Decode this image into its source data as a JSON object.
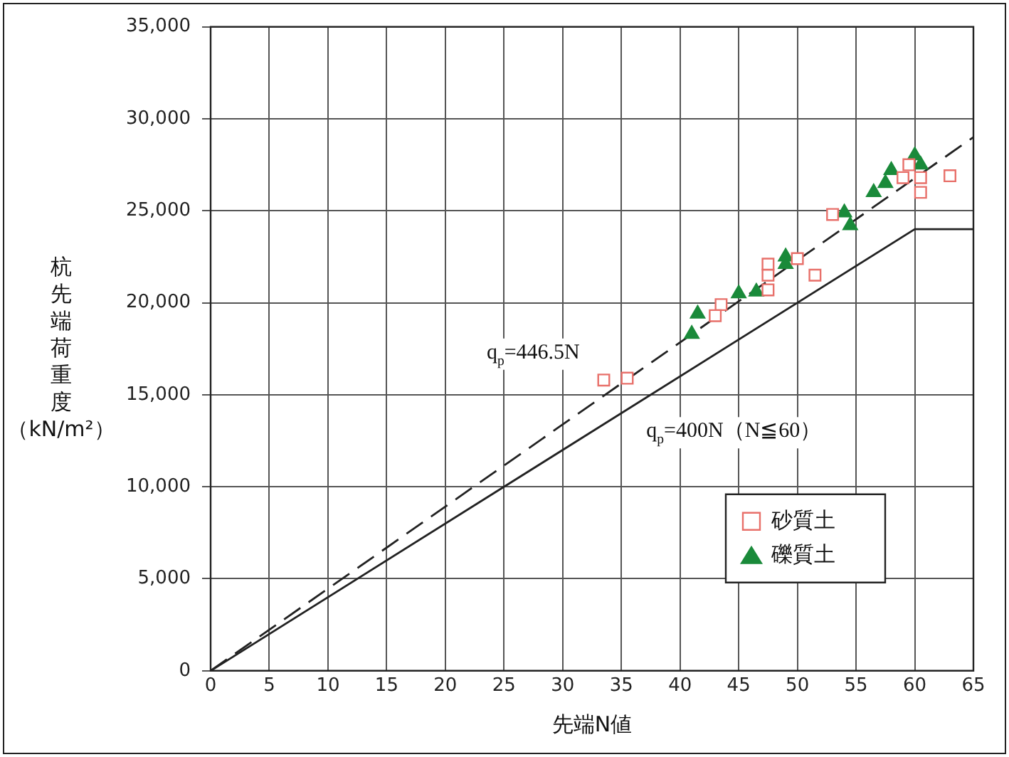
{
  "chart_data": {
    "type": "scatter",
    "xlabel": "先端N値",
    "ylabel": "杭先端荷重度（kN/m²）",
    "xlim": [
      0,
      65
    ],
    "xticks": [
      0,
      5,
      10,
      15,
      20,
      25,
      30,
      35,
      40,
      45,
      50,
      55,
      60,
      65
    ],
    "ylim": [
      0,
      35000
    ],
    "yticks": [
      0,
      {
        "value": 5000,
        "label": "5,000"
      },
      {
        "value": 10000,
        "label": "10,000"
      },
      {
        "value": 15000,
        "label": "15,000"
      },
      {
        "value": 20000,
        "label": "20,000"
      },
      {
        "value": 25000,
        "label": "25,000"
      },
      {
        "value": 30000,
        "label": "30,000"
      },
      {
        "value": 35000,
        "label": "35,000"
      }
    ],
    "grid": true,
    "legend": "bottom right",
    "series": [
      {
        "name": "砂質土",
        "type": "scatter",
        "marker": "square",
        "color": "#e8706a",
        "x": [
          33.5,
          35.5,
          43.5,
          43.0,
          47.5,
          47.5,
          47.5,
          50.0,
          51.5,
          53.0,
          59.0,
          59.5,
          60.5,
          60.5,
          63.0
        ],
        "values": [
          15800,
          15900,
          19900,
          19300,
          20700,
          21500,
          22100,
          22400,
          21500,
          24800,
          26800,
          27500,
          26800,
          26000,
          26900
        ]
      },
      {
        "name": "礫質土",
        "type": "scatter",
        "marker": "triangle",
        "color": "#1a8a3a",
        "x": [
          41.0,
          41.5,
          45.0,
          46.5,
          49.0,
          49.0,
          54.0,
          54.5,
          56.5,
          57.5,
          58.0,
          60.0,
          60.5
        ],
        "values": [
          18300,
          19400,
          20500,
          20600,
          22500,
          22100,
          24900,
          24200,
          26000,
          26500,
          27200,
          28000,
          27500
        ]
      },
      {
        "type": "line",
        "marker": "none",
        "line_style": "dashed",
        "color": "#222222",
        "x": [
          0,
          65
        ],
        "values": [
          0,
          29000
        ]
      },
      {
        "type": "line",
        "marker": "none",
        "line_style": "solid",
        "color": "#222222",
        "x": [
          0,
          60,
          65
        ],
        "values": [
          0,
          24000,
          24000
        ]
      }
    ],
    "annotations": [
      "q$_{p}$=446.5N",
      "q$_{p}$=400N（N≦60）"
    ]
  }
}
